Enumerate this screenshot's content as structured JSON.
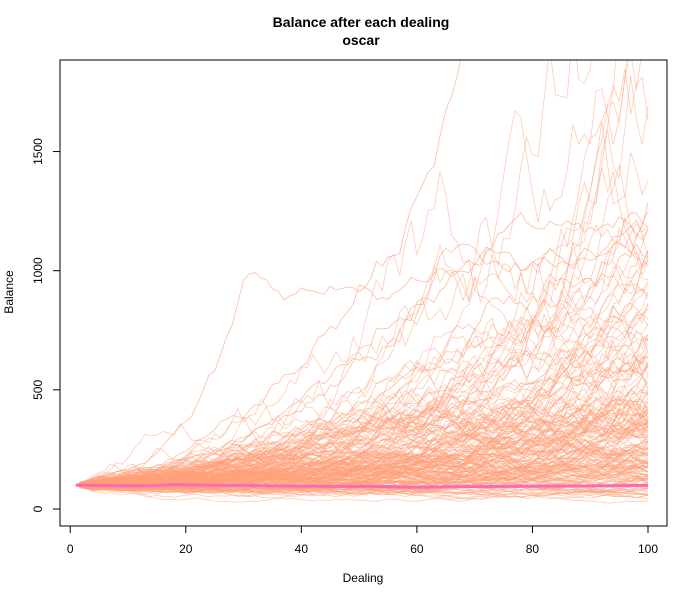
{
  "chart_data": {
    "type": "line",
    "title": "Balance after each dealing",
    "subtitle": "oscar",
    "xlabel": "Dealing",
    "ylabel": "Balance",
    "xlim": [
      1,
      100
    ],
    "ylim": [
      0,
      1880
    ],
    "x_ticks": [
      0,
      20,
      40,
      60,
      80,
      100
    ],
    "y_ticks": [
      0,
      500,
      1000,
      1500
    ],
    "grid": false,
    "legend": "none",
    "simulation_paths": {
      "count": 200,
      "start_value": 100,
      "dealings": 100,
      "color": "#FFA07A",
      "representative_peaks": [
        {
          "x": 72,
          "y": 1880
        },
        {
          "x": 78,
          "y": 1600
        },
        {
          "x": 100,
          "y": 1620
        },
        {
          "x": 67,
          "y": 1450
        },
        {
          "x": 100,
          "y": 1400
        },
        {
          "x": 30,
          "y": 900
        },
        {
          "x": 100,
          "y": 1250
        }
      ]
    },
    "series": [
      {
        "name": "",
        "color": "#FF69B4",
        "x": [
          1,
          5,
          10,
          15,
          18,
          20,
          25,
          30,
          35,
          40,
          45,
          50,
          55,
          60,
          65,
          70,
          75,
          80,
          85,
          90,
          95,
          100
        ],
        "values": [
          100,
          99,
          97,
          98,
          103,
          101,
          100,
          99,
          97,
          96,
          95,
          95,
          94,
          91,
          93,
          94,
          95,
          96,
          96,
          97,
          98,
          99
        ]
      }
    ]
  }
}
